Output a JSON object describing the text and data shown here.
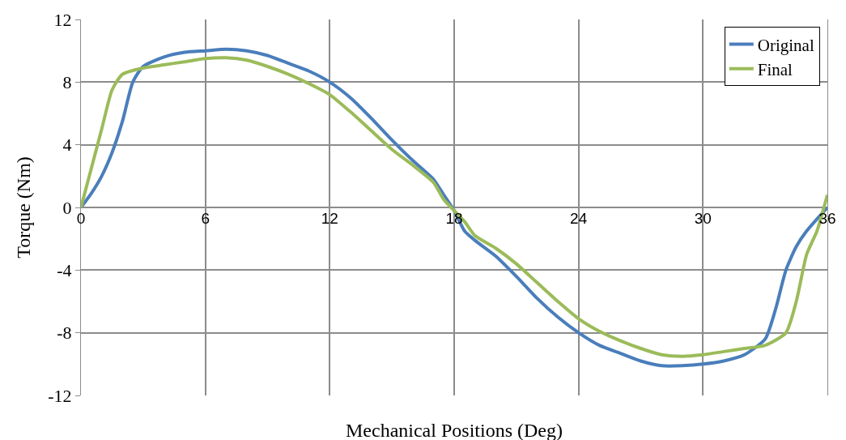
{
  "chart_data": {
    "type": "line",
    "xlabel": "Mechanical Positions (Deg)",
    "ylabel": "Torque (Nm)",
    "xlim": [
      0,
      36
    ],
    "xticks": [
      0,
      6,
      12,
      18,
      24,
      30,
      36
    ],
    "ylim": [
      -12,
      12
    ],
    "yticks": [
      -12,
      -8,
      -4,
      0,
      4,
      8,
      12
    ],
    "grid": true,
    "legend": "top right",
    "marker": "none",
    "line_style": "solid",
    "series": [
      {
        "name": "Original",
        "color": "#4a7ebb",
        "x": [
          0,
          0.5,
          1,
          1.5,
          2,
          2.5,
          3,
          4,
          5,
          6,
          7,
          8,
          9,
          10,
          11,
          12,
          13,
          14,
          15,
          16,
          17,
          17.5,
          18,
          18.5,
          19,
          20,
          21,
          22,
          23,
          24,
          25,
          26,
          27,
          28,
          29,
          30,
          31,
          32,
          33,
          33.5,
          34,
          34.5,
          35,
          36
        ],
        "values": [
          0,
          0.9,
          2,
          3.5,
          5.5,
          8,
          9,
          9.6,
          9.9,
          10,
          10.1,
          10,
          9.7,
          9.2,
          8.7,
          8,
          7,
          5.7,
          4.3,
          3,
          1.8,
          0.8,
          -0.2,
          -1.5,
          -2.1,
          -3.1,
          -4.4,
          -5.8,
          -7,
          -8,
          -8.8,
          -9.3,
          -9.8,
          -10.1,
          -10.1,
          -10,
          -9.8,
          -9.4,
          -8.4,
          -6.5,
          -4,
          -2.5,
          -1.5,
          0
        ]
      },
      {
        "name": "Final",
        "color": "#9bbb59",
        "x": [
          0,
          0.5,
          1,
          1.5,
          2,
          3,
          4,
          5,
          6,
          7,
          8,
          9,
          10,
          11,
          12,
          13,
          14,
          15,
          16,
          17,
          17.5,
          18,
          18.5,
          19,
          20,
          21,
          22,
          23,
          24,
          25,
          26,
          27,
          28,
          29,
          30,
          31,
          32,
          33,
          34,
          34.5,
          35,
          35.5,
          36
        ],
        "values": [
          0,
          2.5,
          5,
          7.5,
          8.5,
          8.9,
          9.1,
          9.3,
          9.5,
          9.55,
          9.4,
          9,
          8.5,
          7.9,
          7.2,
          6.1,
          4.9,
          3.7,
          2.7,
          1.6,
          0.5,
          -0.2,
          -0.9,
          -1.8,
          -2.6,
          -3.6,
          -4.8,
          -6,
          -7.1,
          -7.9,
          -8.5,
          -9,
          -9.4,
          -9.5,
          -9.4,
          -9.2,
          -9,
          -8.8,
          -8,
          -6,
          -3,
          -1.5,
          0.8
        ]
      }
    ]
  }
}
